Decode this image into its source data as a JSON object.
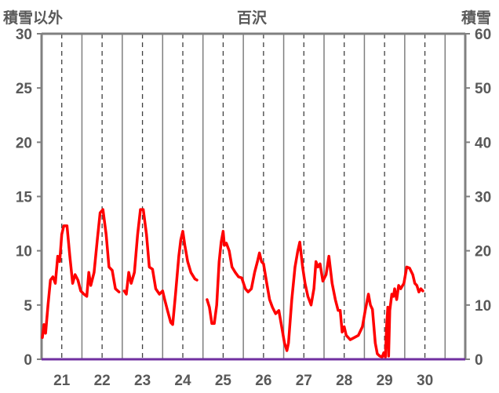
{
  "chart_data": {
    "type": "line",
    "title": "百沢",
    "ylabel_left": "積雪以外",
    "ylabel_right": "積雪",
    "xlabel": "",
    "categories": [
      "21",
      "22",
      "23",
      "24",
      "25",
      "26",
      "27",
      "28",
      "29",
      "30"
    ],
    "xlim": [
      20.5,
      31.0
    ],
    "ylim_left": [
      0,
      30
    ],
    "ylim_right": [
      0,
      60
    ],
    "left_ticks": [
      0,
      5,
      10,
      15,
      20,
      25,
      30
    ],
    "right_ticks": [
      0,
      10,
      20,
      30,
      40,
      50,
      60
    ],
    "grid": "vertical dashed lines at each day and at day midpoints",
    "series": [
      {
        "axis": "left",
        "color": "#ff0000",
        "segments": [
          [
            [
              20.52,
              2.0
            ],
            [
              20.56,
              3.2
            ],
            [
              20.6,
              2.4
            ],
            [
              20.66,
              5.0
            ],
            [
              20.72,
              7.3
            ],
            [
              20.78,
              7.6
            ],
            [
              20.84,
              7.0
            ],
            [
              20.9,
              9.5
            ],
            [
              20.95,
              9.0
            ],
            [
              21.0,
              11.5
            ],
            [
              21.05,
              12.3
            ],
            [
              21.13,
              12.3
            ],
            [
              21.2,
              9.5
            ],
            [
              21.27,
              7.0
            ],
            [
              21.33,
              7.8
            ],
            [
              21.4,
              7.3
            ],
            [
              21.47,
              6.3
            ],
            [
              21.55,
              6.0
            ],
            [
              21.62,
              5.8
            ],
            [
              21.67,
              8.0
            ],
            [
              21.72,
              6.8
            ],
            [
              21.8,
              8.0
            ],
            [
              21.88,
              11.0
            ],
            [
              21.95,
              13.5
            ],
            [
              22.02,
              13.8
            ],
            [
              22.1,
              11.5
            ],
            [
              22.17,
              8.5
            ],
            [
              22.25,
              8.2
            ],
            [
              22.33,
              6.5
            ],
            [
              22.42,
              6.2
            ]
          ],
          [
            [
              22.55,
              6.3
            ],
            [
              22.6,
              6.0
            ],
            [
              22.66,
              8.0
            ],
            [
              22.72,
              7.0
            ],
            [
              22.8,
              8.0
            ],
            [
              22.88,
              11.5
            ],
            [
              22.95,
              13.8
            ],
            [
              23.02,
              13.8
            ],
            [
              23.1,
              11.5
            ],
            [
              23.17,
              8.5
            ],
            [
              23.25,
              8.3
            ],
            [
              23.33,
              6.5
            ],
            [
              23.42,
              6.0
            ],
            [
              23.5,
              6.3
            ],
            [
              23.55,
              5.5
            ],
            [
              23.62,
              4.5
            ],
            [
              23.7,
              3.4
            ],
            [
              23.75,
              3.2
            ],
            [
              23.82,
              6.0
            ],
            [
              23.9,
              9.5
            ],
            [
              23.95,
              11.0
            ],
            [
              24.0,
              11.8
            ],
            [
              24.05,
              10.5
            ],
            [
              24.12,
              9.0
            ],
            [
              24.2,
              8.0
            ],
            [
              24.3,
              7.4
            ],
            [
              24.35,
              7.3
            ]
          ],
          [
            [
              24.6,
              5.5
            ],
            [
              24.66,
              4.8
            ],
            [
              24.72,
              3.3
            ],
            [
              24.78,
              3.3
            ],
            [
              24.84,
              5.0
            ],
            [
              24.9,
              9.0
            ],
            [
              24.95,
              10.8
            ],
            [
              25.0,
              11.8
            ],
            [
              25.03,
              10.5
            ],
            [
              25.08,
              10.7
            ],
            [
              25.15,
              10.0
            ],
            [
              25.22,
              8.5
            ],
            [
              25.3,
              8.0
            ],
            [
              25.38,
              7.6
            ],
            [
              25.46,
              7.5
            ],
            [
              25.55,
              6.5
            ],
            [
              25.62,
              6.2
            ],
            [
              25.7,
              6.5
            ],
            [
              25.78,
              8.0
            ],
            [
              25.85,
              9.0
            ],
            [
              25.9,
              9.8
            ],
            [
              25.95,
              9.0
            ],
            [
              26.0,
              8.8
            ],
            [
              26.08,
              7.0
            ],
            [
              26.15,
              5.5
            ],
            [
              26.22,
              4.8
            ],
            [
              26.3,
              4.2
            ],
            [
              26.38,
              4.5
            ],
            [
              26.45,
              3.0
            ],
            [
              26.52,
              1.5
            ],
            [
              26.58,
              0.8
            ],
            [
              26.62,
              1.5
            ],
            [
              26.7,
              5.5
            ],
            [
              26.78,
              8.5
            ],
            [
              26.85,
              10.0
            ],
            [
              26.9,
              10.8
            ],
            [
              26.97,
              8.5
            ],
            [
              27.03,
              7.0
            ],
            [
              27.1,
              5.8
            ],
            [
              27.18,
              5.0
            ],
            [
              27.25,
              6.5
            ],
            [
              27.3,
              9.0
            ],
            [
              27.35,
              8.5
            ],
            [
              27.4,
              8.8
            ],
            [
              27.47,
              7.2
            ],
            [
              27.55,
              7.8
            ],
            [
              27.62,
              9.5
            ],
            [
              27.7,
              7.0
            ],
            [
              27.78,
              5.5
            ],
            [
              27.85,
              4.5
            ],
            [
              27.9,
              4.5
            ],
            [
              27.95,
              2.5
            ],
            [
              28.0,
              3.0
            ],
            [
              28.05,
              2.2
            ],
            [
              28.15,
              1.8
            ],
            [
              28.25,
              2.0
            ],
            [
              28.35,
              2.2
            ],
            [
              28.45,
              3.0
            ],
            [
              28.52,
              4.5
            ],
            [
              28.6,
              6.0
            ],
            [
              28.65,
              5.0
            ],
            [
              28.7,
              4.6
            ],
            [
              28.77,
              1.5
            ],
            [
              28.82,
              0.5
            ],
            [
              28.88,
              0.3
            ],
            [
              28.94,
              0.2
            ],
            [
              28.98,
              0.6
            ],
            [
              29.02,
              0.2
            ],
            [
              29.05,
              3.0
            ],
            [
              29.08,
              4.8
            ],
            [
              29.1,
              0.3
            ],
            [
              29.13,
              4.5
            ],
            [
              29.18,
              6.0
            ],
            [
              29.22,
              5.8
            ],
            [
              29.25,
              6.5
            ],
            [
              29.3,
              5.5
            ],
            [
              29.35,
              6.8
            ],
            [
              29.4,
              6.5
            ],
            [
              29.48,
              7.0
            ],
            [
              29.55,
              8.5
            ],
            [
              29.62,
              8.4
            ],
            [
              29.7,
              7.8
            ],
            [
              29.75,
              7.0
            ],
            [
              29.8,
              6.8
            ],
            [
              29.85,
              6.2
            ],
            [
              29.9,
              6.5
            ],
            [
              29.95,
              6.3
            ]
          ]
        ]
      },
      {
        "axis": "right",
        "color": "#7030a0",
        "values": [
          [
            20.5,
            0
          ],
          [
            31.0,
            0
          ]
        ]
      }
    ]
  }
}
